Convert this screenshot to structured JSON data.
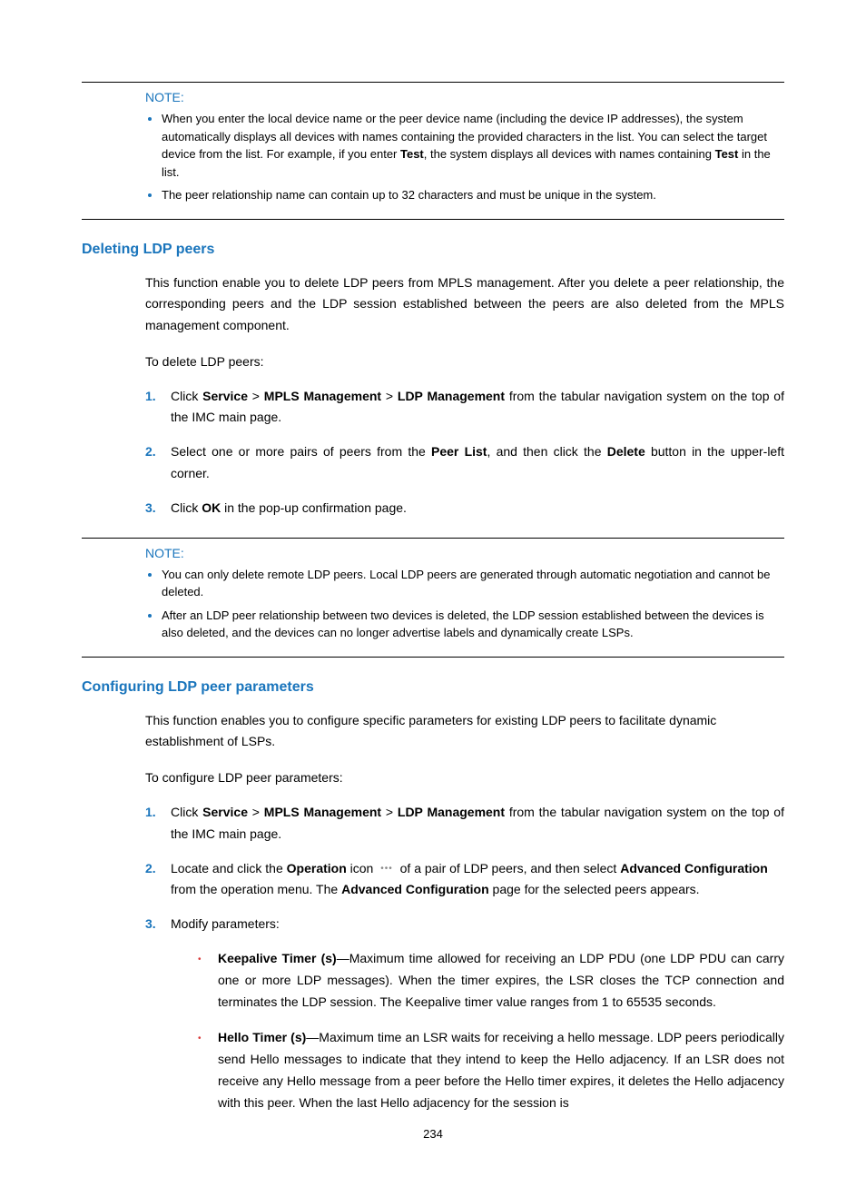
{
  "note1": {
    "label": "NOTE:",
    "items": [
      "When you enter the local device name or the peer device name (including the device IP addresses), the system automatically displays all devices with names containing the provided characters in the list. You can select the target device from the list. For example, if you enter <b>Test</b>, the system displays all devices with names containing <b>Test</b> in the list.",
      "The peer relationship name can contain up to 32 characters and must be unique in the system."
    ]
  },
  "section1": {
    "heading": "Deleting LDP peers",
    "intro": "This function enable you to delete LDP peers from MPLS management. After you delete a peer relationship, the corresponding peers and the LDP session established between the peers are also deleted from the MPLS management component.",
    "lead": "To delete LDP peers:",
    "steps": [
      "Click <b>Service</b> > <b>MPLS Management</b> > <b>LDP Management</b> from the tabular navigation system on the top of the IMC main page.",
      "Select one or more pairs of peers from the <b>Peer List</b>, and then click the <b>Delete</b> button in the upper-left corner.",
      "Click <b>OK</b> in the pop-up confirmation page."
    ]
  },
  "note2": {
    "label": "NOTE:",
    "items": [
      "You can only delete remote LDP peers. Local LDP peers are generated through automatic negotiation and cannot be deleted.",
      "After an LDP peer relationship between two devices is deleted, the LDP session established between the devices is also deleted, and the devices can no longer advertise labels and dynamically create LSPs."
    ]
  },
  "section2": {
    "heading": "Configuring LDP peer parameters",
    "intro": "This function enables you to configure specific parameters for existing LDP peers to facilitate dynamic establishment of LSPs.",
    "lead": "To configure LDP peer parameters:",
    "steps": [
      "Click <b>Service</b> > <b>MPLS Management</b> > <b>LDP Management</b> from the tabular navigation system on the top of the IMC main page.",
      "Locate and click the <b>Operation</b> icon <span class=\"op-icon\">•••</span> of a pair of LDP peers, and then select <b>Advanced Configuration</b> from the operation menu. The <b>Advanced Configuration</b> page for the selected peers appears.",
      "Modify parameters:"
    ],
    "params": [
      "<b>Keepalive Timer (s)</b>—Maximum time allowed for receiving an LDP PDU (one LDP PDU can carry one or more LDP messages). When the timer expires, the LSR closes the TCP connection and terminates the LDP session. The Keepalive timer value ranges from 1 to 65535 seconds.",
      "<b>Hello Timer (s)</b>—Maximum time an LSR waits for receiving a hello message. LDP peers periodically send Hello messages to indicate that they intend to keep the Hello adjacency. If an LSR does not receive any Hello message from a peer before the Hello timer expires, it deletes the Hello adjacency with this peer. When the last Hello adjacency for the session is"
    ]
  },
  "page_number": "234"
}
